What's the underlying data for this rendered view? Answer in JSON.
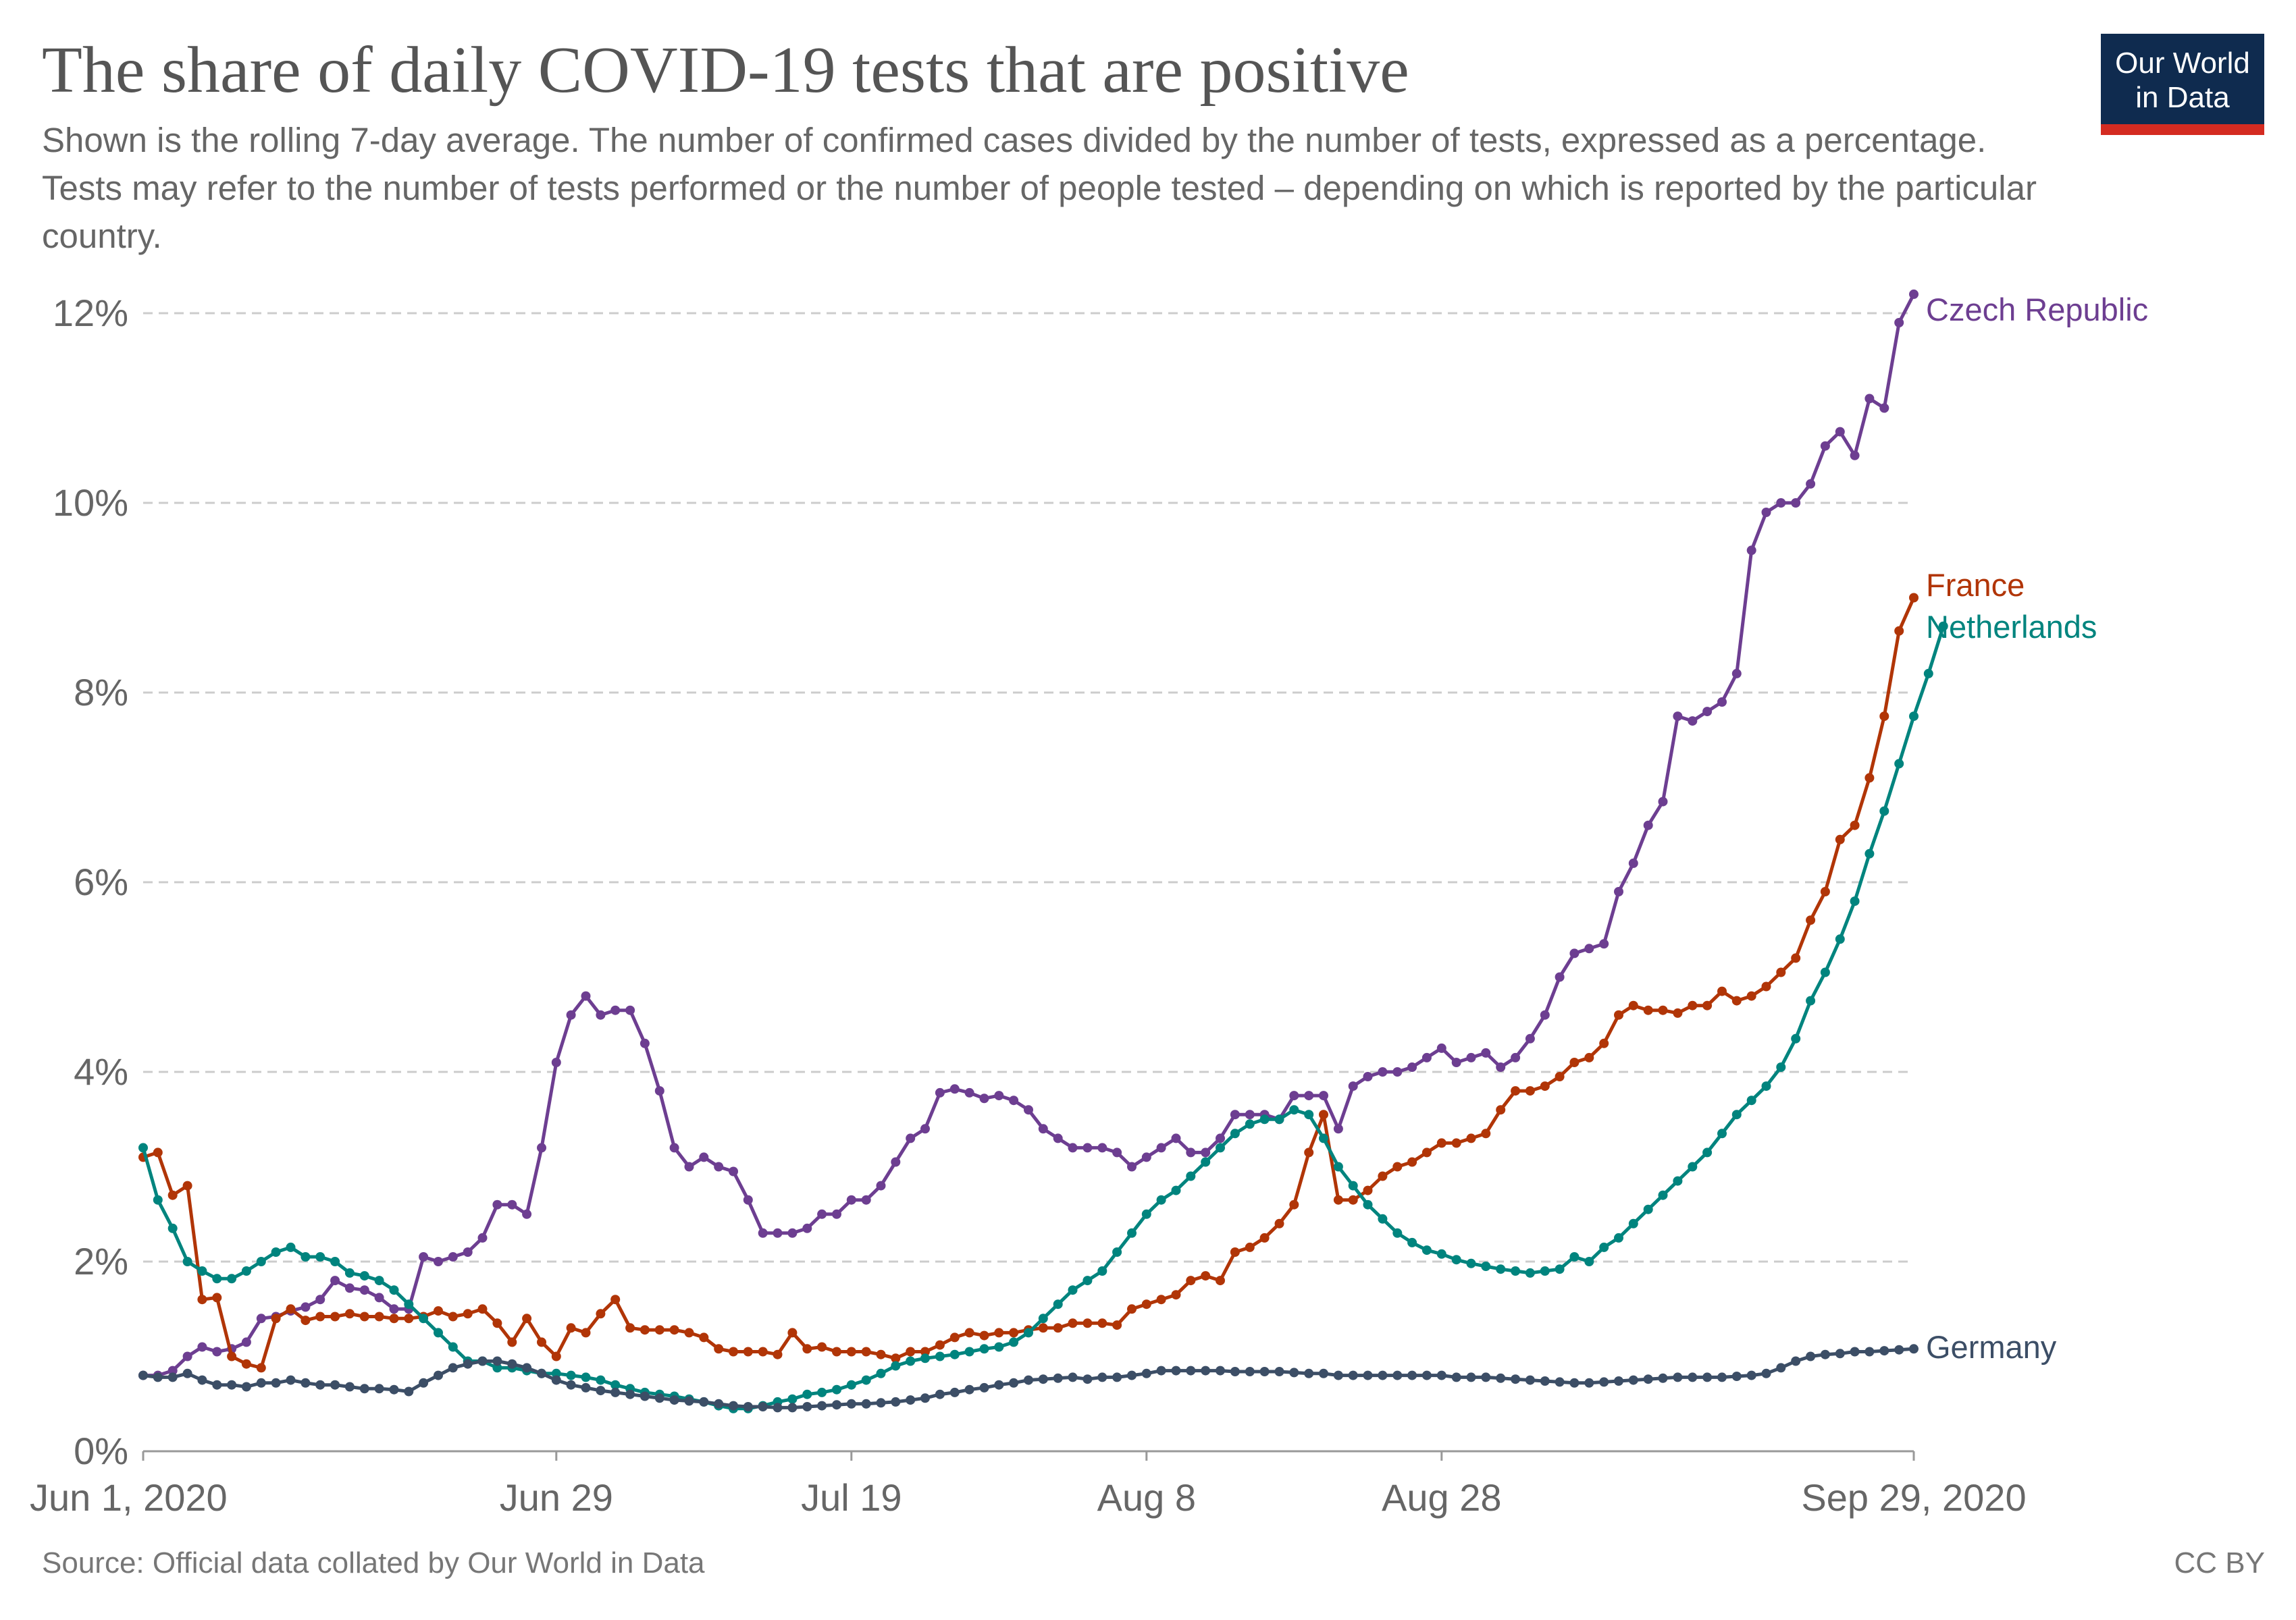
{
  "title": "The share of daily COVID-19 tests that are positive",
  "subtitle": "Shown is the rolling 7-day average. The number of confirmed cases divided by the number of tests, expressed as a percentage. Tests may refer to the number of tests performed or the number of people tested – depending on which is reported by the particular country.",
  "logo": {
    "line1": "Our World",
    "line2": "in Data",
    "colors": {
      "background": "#0f2b4f",
      "stripe": "#d42b21"
    }
  },
  "source": "Source: Official data collated by Our World in Data",
  "license": "CC BY",
  "chart_data": {
    "type": "line",
    "markers": true,
    "x_type": "date",
    "x_tick_labels": [
      {
        "date": "2020-06-01",
        "label": "Jun 1, 2020"
      },
      {
        "date": "2020-06-29",
        "label": "Jun 29"
      },
      {
        "date": "2020-07-19",
        "label": "Jul 19"
      },
      {
        "date": "2020-08-08",
        "label": "Aug 8"
      },
      {
        "date": "2020-08-28",
        "label": "Aug 28"
      },
      {
        "date": "2020-09-29",
        "label": "Sep 29, 2020"
      }
    ],
    "y_ticks": [
      {
        "value": 0,
        "label": "0%"
      },
      {
        "value": 2,
        "label": "2%"
      },
      {
        "value": 4,
        "label": "4%"
      },
      {
        "value": 6,
        "label": "6%"
      },
      {
        "value": 8,
        "label": "8%"
      },
      {
        "value": 10,
        "label": "10%"
      },
      {
        "value": 12,
        "label": "12%"
      }
    ],
    "xlim": [
      "2020-06-01",
      "2020-09-29"
    ],
    "ylim": [
      0,
      12
    ],
    "y_unit": "%",
    "grid": "horizontal dashed",
    "legend": "labels at line ends",
    "series": [
      {
        "name": "Czech Republic",
        "color": "#6d3e91",
        "start": "2020-06-01",
        "values": [
          0.8,
          0.8,
          0.85,
          1.0,
          1.1,
          1.05,
          1.08,
          1.15,
          1.4,
          1.42,
          1.48,
          1.52,
          1.6,
          1.8,
          1.72,
          1.7,
          1.62,
          1.5,
          1.5,
          2.05,
          2.0,
          2.05,
          2.1,
          2.25,
          2.6,
          2.6,
          2.5,
          3.2,
          4.1,
          4.6,
          4.8,
          4.6,
          4.65,
          4.65,
          4.3,
          3.8,
          3.2,
          3.0,
          3.1,
          3.0,
          2.95,
          2.65,
          2.3,
          2.3,
          2.3,
          2.35,
          2.5,
          2.5,
          2.65,
          2.65,
          2.8,
          3.05,
          3.3,
          3.4,
          3.78,
          3.82,
          3.78,
          3.72,
          3.75,
          3.7,
          3.6,
          3.4,
          3.3,
          3.2,
          3.2,
          3.2,
          3.15,
          3.0,
          3.1,
          3.2,
          3.3,
          3.15,
          3.15,
          3.3,
          3.55,
          3.55,
          3.55,
          3.5,
          3.75,
          3.75,
          3.75,
          3.4,
          3.85,
          3.95,
          4.0,
          4.0,
          4.05,
          4.15,
          4.25,
          4.1,
          4.15,
          4.2,
          4.05,
          4.15,
          4.35,
          4.6,
          5.0,
          5.25,
          5.3,
          5.35,
          5.9,
          6.2,
          6.6,
          6.85,
          7.75,
          7.7,
          7.8,
          7.9,
          8.2,
          9.5,
          9.9,
          10.0,
          10.0,
          10.2,
          10.6,
          10.75,
          10.5,
          11.1,
          11.0,
          11.9,
          12.2
        ]
      },
      {
        "name": "France",
        "color": "#b13507",
        "start": "2020-06-01",
        "values": [
          3.1,
          3.15,
          2.7,
          2.8,
          1.6,
          1.62,
          1.0,
          0.92,
          0.88,
          1.4,
          1.5,
          1.38,
          1.42,
          1.42,
          1.45,
          1.42,
          1.42,
          1.4,
          1.4,
          1.42,
          1.48,
          1.42,
          1.45,
          1.5,
          1.35,
          1.15,
          1.4,
          1.15,
          1.0,
          1.3,
          1.25,
          1.45,
          1.6,
          1.3,
          1.28,
          1.28,
          1.28,
          1.25,
          1.2,
          1.08,
          1.05,
          1.05,
          1.05,
          1.02,
          1.25,
          1.08,
          1.1,
          1.05,
          1.05,
          1.05,
          1.02,
          0.98,
          1.05,
          1.05,
          1.12,
          1.2,
          1.25,
          1.22,
          1.25,
          1.25,
          1.28,
          1.3,
          1.3,
          1.35,
          1.35,
          1.35,
          1.33,
          1.5,
          1.55,
          1.6,
          1.65,
          1.8,
          1.85,
          1.8,
          2.1,
          2.15,
          2.25,
          2.4,
          2.6,
          3.15,
          3.55,
          2.65,
          2.65,
          2.75,
          2.9,
          3.0,
          3.05,
          3.15,
          3.25,
          3.25,
          3.3,
          3.35,
          3.6,
          3.8,
          3.8,
          3.85,
          3.95,
          4.1,
          4.15,
          4.3,
          4.6,
          4.7,
          4.65,
          4.65,
          4.62,
          4.7,
          4.7,
          4.85,
          4.75,
          4.8,
          4.9,
          5.05,
          5.2,
          5.6,
          5.9,
          6.45,
          6.6,
          7.1,
          7.75,
          8.65,
          9.0
        ]
      },
      {
        "name": "Netherlands",
        "color": "#00847e",
        "start": "2020-06-01",
        "values": [
          3.2,
          2.65,
          2.35,
          2.0,
          1.9,
          1.82,
          1.82,
          1.9,
          2.0,
          2.1,
          2.15,
          2.05,
          2.05,
          2.0,
          1.88,
          1.85,
          1.8,
          1.7,
          1.55,
          1.4,
          1.25,
          1.1,
          0.95,
          0.95,
          0.88,
          0.88,
          0.85,
          0.82,
          0.82,
          0.8,
          0.78,
          0.75,
          0.7,
          0.66,
          0.62,
          0.6,
          0.58,
          0.55,
          0.52,
          0.48,
          0.45,
          0.45,
          0.48,
          0.52,
          0.55,
          0.6,
          0.62,
          0.65,
          0.7,
          0.75,
          0.82,
          0.9,
          0.95,
          0.98,
          1.0,
          1.02,
          1.05,
          1.08,
          1.1,
          1.15,
          1.25,
          1.4,
          1.55,
          1.7,
          1.8,
          1.9,
          2.1,
          2.3,
          2.5,
          2.65,
          2.75,
          2.9,
          3.05,
          3.2,
          3.35,
          3.45,
          3.5,
          3.5,
          3.6,
          3.55,
          3.3,
          3.0,
          2.8,
          2.6,
          2.45,
          2.3,
          2.2,
          2.12,
          2.08,
          2.02,
          1.98,
          1.95,
          1.92,
          1.9,
          1.88,
          1.9,
          1.92,
          2.05,
          2.0,
          2.15,
          2.25,
          2.4,
          2.55,
          2.7,
          2.85,
          3.0,
          3.15,
          3.35,
          3.55,
          3.7,
          3.85,
          4.05,
          4.35,
          4.75,
          5.05,
          5.4,
          5.8,
          6.3,
          6.75,
          7.25,
          7.75,
          8.2,
          8.7
        ]
      },
      {
        "name": "Germany",
        "color": "#3c4e66",
        "start": "2020-06-01",
        "values": [
          0.8,
          0.78,
          0.78,
          0.82,
          0.75,
          0.7,
          0.7,
          0.68,
          0.72,
          0.72,
          0.75,
          0.72,
          0.7,
          0.7,
          0.68,
          0.66,
          0.66,
          0.65,
          0.63,
          0.72,
          0.8,
          0.88,
          0.92,
          0.95,
          0.95,
          0.92,
          0.88,
          0.82,
          0.75,
          0.7,
          0.67,
          0.64,
          0.62,
          0.6,
          0.58,
          0.56,
          0.54,
          0.53,
          0.52,
          0.5,
          0.48,
          0.47,
          0.47,
          0.46,
          0.46,
          0.47,
          0.48,
          0.49,
          0.5,
          0.5,
          0.51,
          0.52,
          0.54,
          0.56,
          0.6,
          0.62,
          0.65,
          0.67,
          0.7,
          0.72,
          0.75,
          0.76,
          0.77,
          0.78,
          0.76,
          0.78,
          0.78,
          0.8,
          0.82,
          0.85,
          0.85,
          0.85,
          0.85,
          0.85,
          0.84,
          0.84,
          0.84,
          0.84,
          0.83,
          0.82,
          0.82,
          0.8,
          0.8,
          0.8,
          0.8,
          0.8,
          0.8,
          0.8,
          0.8,
          0.78,
          0.78,
          0.78,
          0.77,
          0.76,
          0.75,
          0.74,
          0.73,
          0.72,
          0.72,
          0.73,
          0.74,
          0.75,
          0.76,
          0.77,
          0.78,
          0.78,
          0.78,
          0.78,
          0.79,
          0.8,
          0.82,
          0.88,
          0.95,
          1.0,
          1.02,
          1.03,
          1.05,
          1.05,
          1.06,
          1.07,
          1.08
        ]
      }
    ]
  }
}
